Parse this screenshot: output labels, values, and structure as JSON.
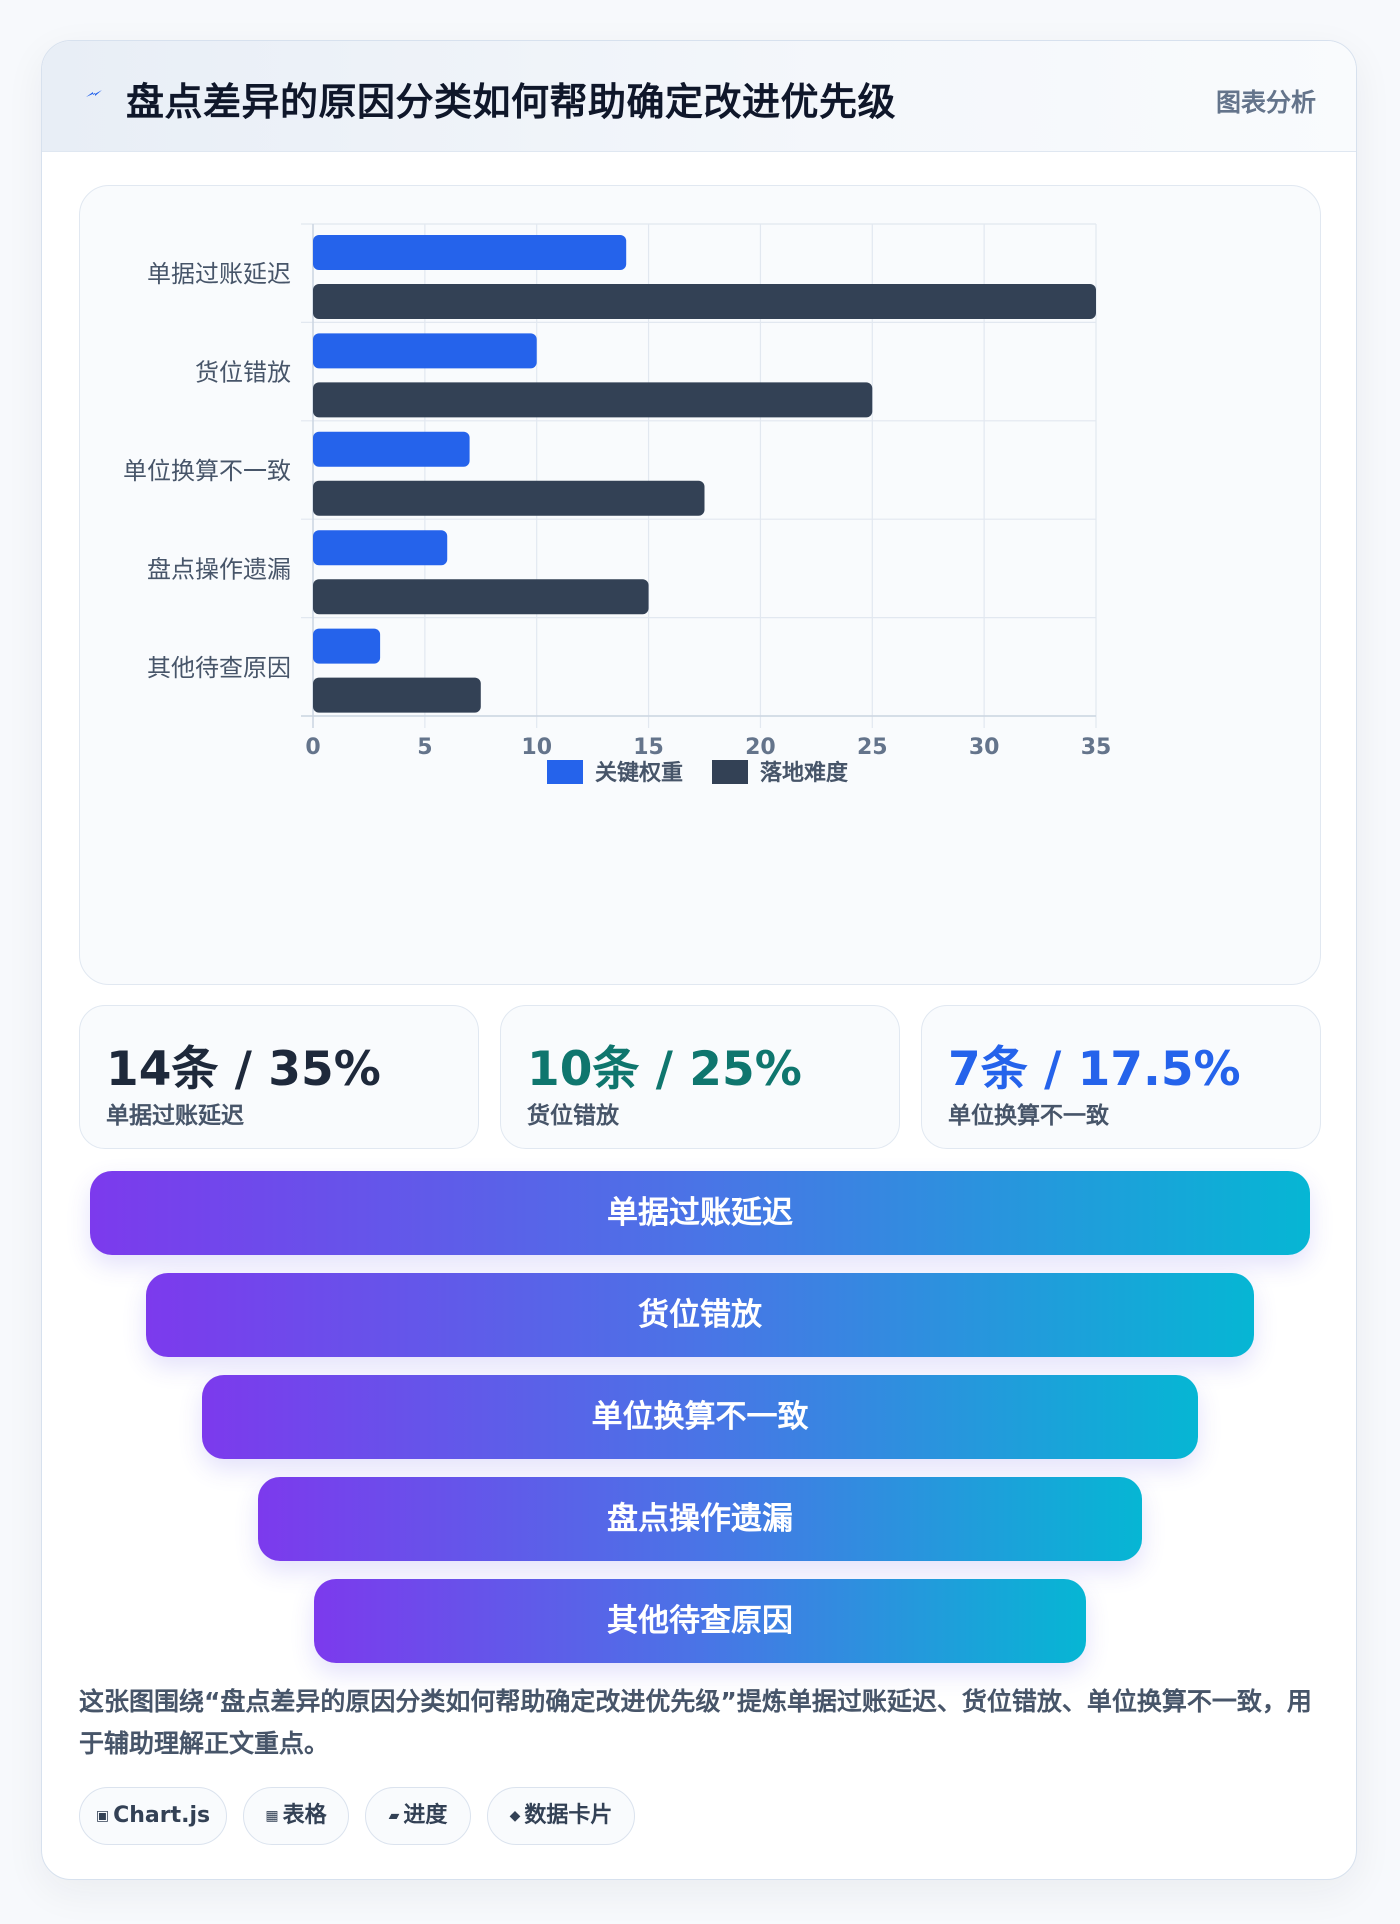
{
  "header": {
    "title": "盘点差异的原因分类如何帮助确定改进优先级",
    "tag": "图表分析"
  },
  "chart_data": {
    "type": "bar",
    "orientation": "horizontal",
    "categories": [
      "单据过账延迟",
      "货位错放",
      "单位换算不一致",
      "盘点操作遗漏",
      "其他待查原因"
    ],
    "series": [
      {
        "name": "关键权重",
        "values": [
          14,
          10,
          7,
          6,
          3
        ],
        "color": "#2563eb"
      },
      {
        "name": "落地难度",
        "values": [
          35,
          25,
          17.5,
          15,
          7.5
        ],
        "color": "#334155"
      }
    ],
    "xlim": [
      0,
      35
    ],
    "xticks": [
      0,
      5,
      10,
      15,
      20,
      25,
      30,
      35
    ],
    "grid": true,
    "legend": "bottom"
  },
  "stats": [
    {
      "value": "14条 / 35%",
      "label": "单据过账延迟",
      "color": "#1e293b"
    },
    {
      "value": "10条 / 25%",
      "label": "货位错放",
      "color": "#0f766e"
    },
    {
      "value": "7条 / 17.5%",
      "label": "单位换算不一致",
      "color": "#2563eb"
    }
  ],
  "funnel": [
    "单据过账延迟",
    "货位错放",
    "单位换算不一致",
    "盘点操作遗漏",
    "其他待查原因"
  ],
  "description": "这张图围绕“盘点差异的原因分类如何帮助确定改进优先级”提炼单据过账延迟、货位错放、单位换算不一致，用于辅助理解正文重点。",
  "chips": [
    {
      "icon": "▣",
      "label": "Chart.js"
    },
    {
      "icon": "▦",
      "label": "表格"
    },
    {
      "icon": "▰",
      "label": "进度"
    },
    {
      "icon": "◆",
      "label": "数据卡片"
    }
  ]
}
